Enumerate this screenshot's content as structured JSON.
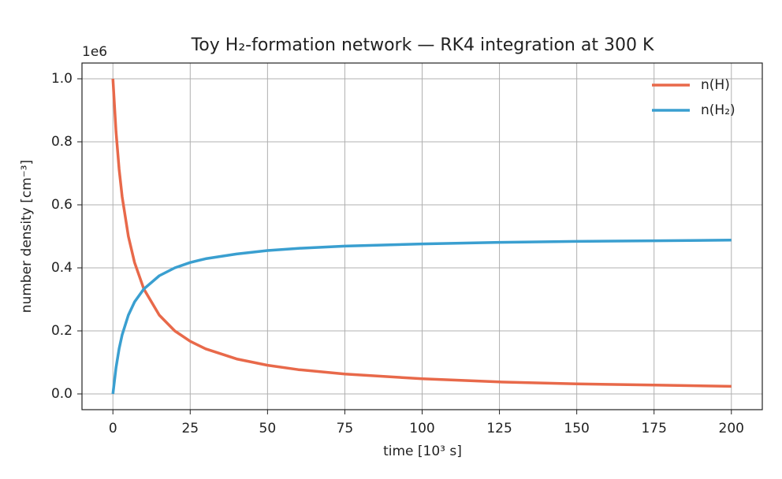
{
  "chart_data": {
    "type": "line",
    "title": "Toy H₂-formation network — RK4 integration at 300 K",
    "xlabel": "time  [10³ s]",
    "ylabel": "number density  [cm⁻³]",
    "y_offset_label": "1e6",
    "x": [
      0,
      1,
      2,
      3,
      5,
      7,
      10,
      15,
      20,
      25,
      30,
      40,
      50,
      60,
      75,
      100,
      125,
      150,
      175,
      200
    ],
    "series": [
      {
        "name": "n(H)",
        "color": "#e8694a",
        "values": [
          1.0,
          0.833,
          0.714,
          0.625,
          0.5,
          0.417,
          0.333,
          0.25,
          0.2,
          0.167,
          0.143,
          0.111,
          0.091,
          0.077,
          0.063,
          0.048,
          0.038,
          0.032,
          0.028,
          0.024
        ]
      },
      {
        "name": "n(H₂)",
        "color": "#3a9fd0",
        "values": [
          0,
          0.083,
          0.143,
          0.188,
          0.25,
          0.292,
          0.333,
          0.375,
          0.4,
          0.417,
          0.429,
          0.444,
          0.455,
          0.462,
          0.469,
          0.476,
          0.481,
          0.484,
          0.486,
          0.488
        ]
      }
    ],
    "xlim": [
      -10,
      210
    ],
    "ylim": [
      -0.05,
      1.05
    ],
    "xticks": [
      0,
      25,
      50,
      75,
      100,
      125,
      150,
      175,
      200
    ],
    "yticks": [
      {
        "value": 0,
        "label": "0.0"
      },
      0.2,
      0.4,
      0.6,
      0.8,
      {
        "value": 1,
        "label": "1.0"
      }
    ],
    "grid": true,
    "legend": "upper right"
  }
}
